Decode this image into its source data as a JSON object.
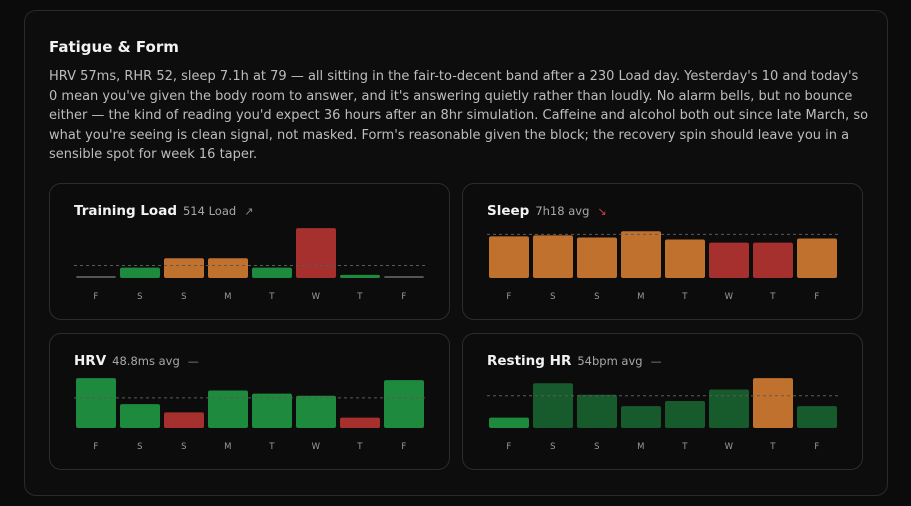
{
  "card": {
    "title": "Fatigue & Form",
    "description": "HRV 57ms, RHR 52, sleep 7.1h at 79 — all sitting in the fair-to-decent band after a 230 Load day. Yesterday's 10 and today's 0 mean you've given the body room to answer, and it's answering quietly rather than loudly. No alarm bells, but no bounce either — the kind of reading you'd expect 36 hours after an 8hr simulation. Caffeine and alcohol both out since late March, so what you're seeing is clean signal, not masked. Form's reasonable given the block; the recovery spin should leave you in a sensible spot for week 16 taper."
  },
  "colors": {
    "green": "#1e8a3e",
    "dark_green": "#175a2c",
    "orange": "#c0712e",
    "red": "#a6302e",
    "baseline": "#555555"
  },
  "panels": [
    {
      "title": "Training Load",
      "subtitle": "514 Load",
      "trend_icon": "trend-up-icon",
      "trend_glyph": "↗"
    },
    {
      "title": "Sleep",
      "subtitle": "7h18 avg",
      "trend_icon": "trend-down-icon",
      "trend_glyph": "↘"
    },
    {
      "title": "HRV",
      "subtitle": "48.8ms avg",
      "trend_icon": "trend-flat-icon",
      "trend_glyph": "—"
    },
    {
      "title": "Resting HR",
      "subtitle": "54bpm avg",
      "trend_icon": "trend-flat-icon",
      "trend_glyph": "—"
    }
  ],
  "chart_data": [
    {
      "type": "bar",
      "name": "training-load",
      "categories": [
        "F",
        "S",
        "S",
        "M",
        "T",
        "W",
        "T",
        "F"
      ],
      "values": [
        1,
        10,
        19,
        19,
        10,
        48,
        3,
        1
      ],
      "colors": [
        "baseline",
        "green",
        "orange",
        "orange",
        "green",
        "red",
        "green",
        "baseline"
      ],
      "average": 12,
      "ylim": [
        0,
        50
      ]
    },
    {
      "type": "bar",
      "name": "sleep",
      "categories": [
        "F",
        "S",
        "S",
        "M",
        "T",
        "W",
        "T",
        "F"
      ],
      "values": [
        40,
        41,
        39,
        45,
        37,
        34,
        34,
        38
      ],
      "colors": [
        "orange",
        "orange",
        "orange",
        "orange",
        "orange",
        "red",
        "red",
        "orange"
      ],
      "average": 42,
      "ylim": [
        0,
        50
      ]
    },
    {
      "type": "bar",
      "name": "hrv",
      "categories": [
        "F",
        "S",
        "S",
        "M",
        "T",
        "W",
        "T",
        "F"
      ],
      "values": [
        48,
        23,
        15,
        36,
        33,
        31,
        10,
        46
      ],
      "colors": [
        "green",
        "green",
        "red",
        "green",
        "green",
        "green",
        "red",
        "green"
      ],
      "average": 29,
      "ylim": [
        0,
        50
      ]
    },
    {
      "type": "bar",
      "name": "resting-hr",
      "categories": [
        "F",
        "S",
        "S",
        "M",
        "T",
        "W",
        "T",
        "F"
      ],
      "values": [
        10,
        43,
        32,
        21,
        26,
        37,
        48,
        21
      ],
      "colors": [
        "green",
        "dark_green",
        "dark_green",
        "dark_green",
        "dark_green",
        "dark_green",
        "orange",
        "dark_green"
      ],
      "average": 31,
      "ylim": [
        0,
        50
      ]
    }
  ]
}
